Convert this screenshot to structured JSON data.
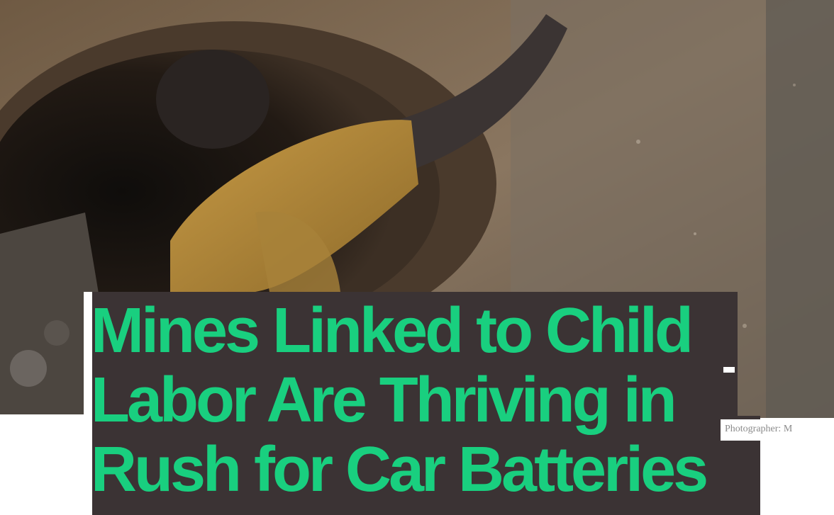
{
  "headline": {
    "text": "Mines Linked to Child\nLabor Are Thriving in\nRush for Car Batteries"
  },
  "photo": {
    "credit": "Photographer: M"
  },
  "colors": {
    "headline_text": "#19cf7f",
    "headline_background": "#3b3334",
    "page_background": "#ffffff"
  }
}
